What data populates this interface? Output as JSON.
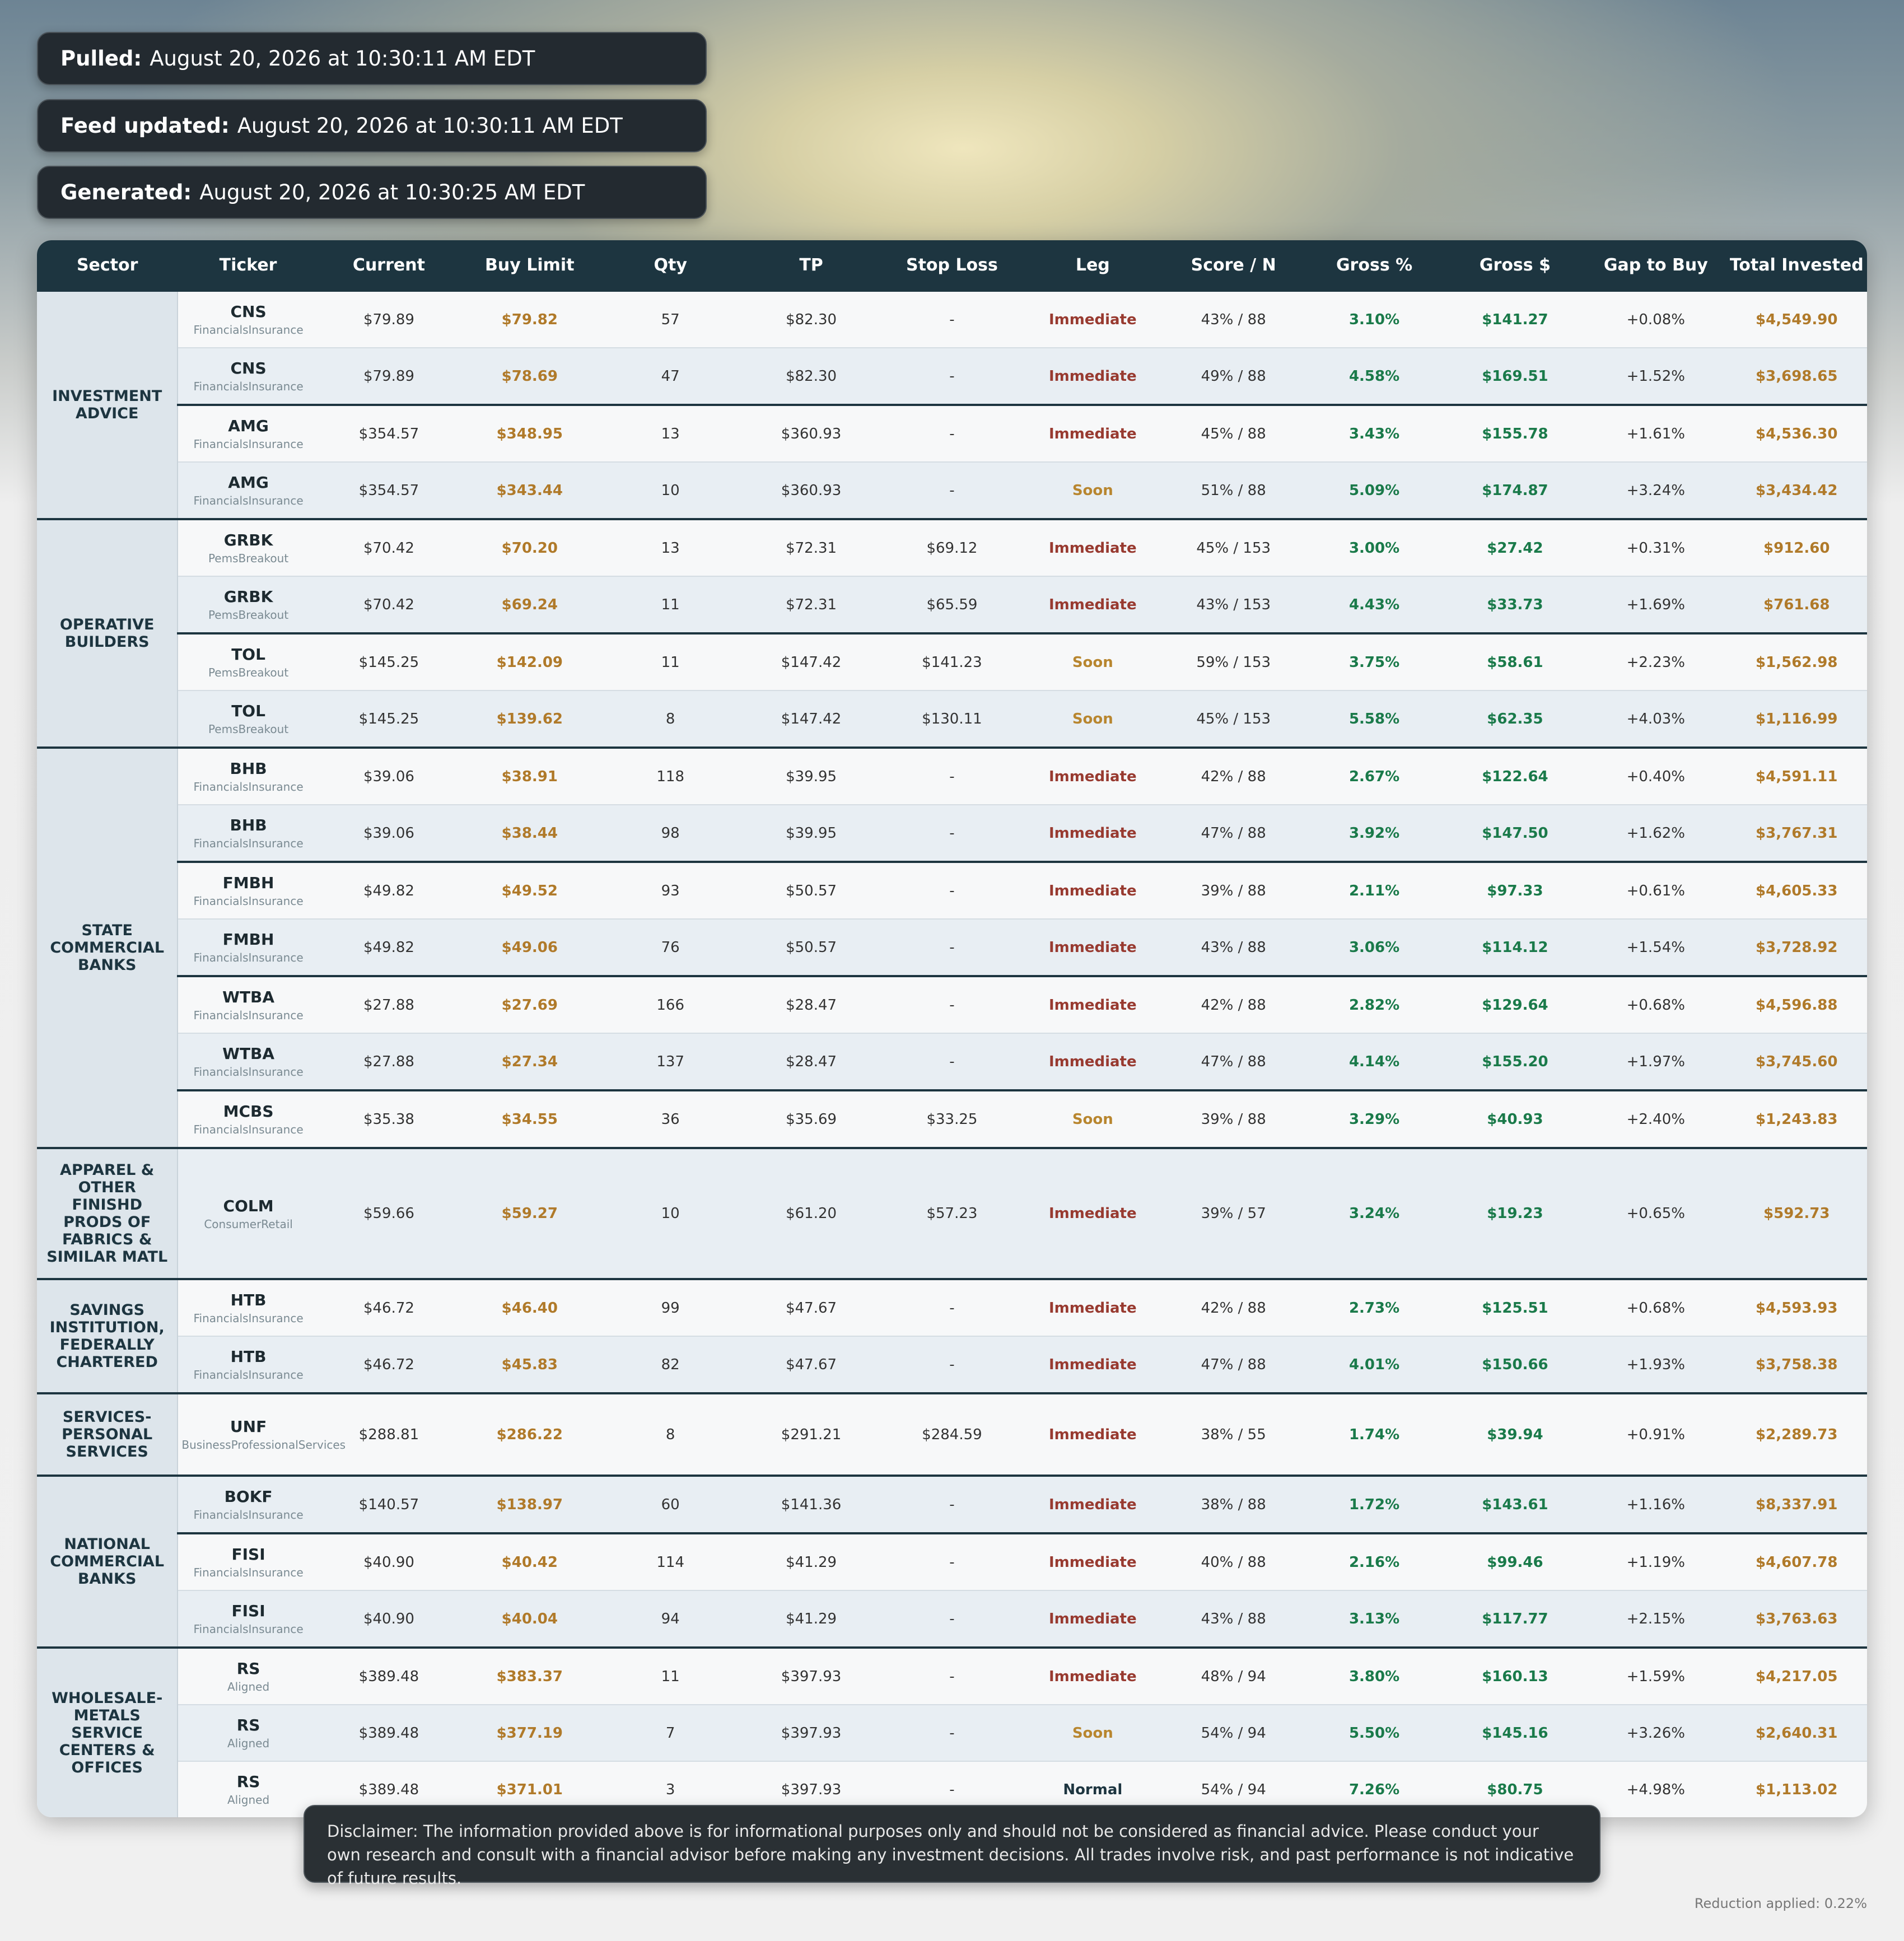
{
  "info": [
    {
      "label": "Pulled:",
      "value": "August 20, 2026 at 10:30:11 AM EDT"
    },
    {
      "label": "Feed updated:",
      "value": "August 20, 2026 at 10:30:11 AM EDT"
    },
    {
      "label": "Generated:",
      "value": "August 20, 2026 at 10:30:25 AM EDT"
    }
  ],
  "table": {
    "columns": [
      "Sector",
      "Ticker",
      "Current",
      "Buy Limit",
      "Qty",
      "TP",
      "Stop Loss",
      "Leg",
      "Score / N",
      "Gross %",
      "Gross $",
      "Gap to Buy",
      "Total Invested"
    ],
    "leg_colors": {
      "Immediate": "#983a30",
      "Soon": "#b8862f",
      "Normal": "#1d3540"
    },
    "groups": [
      {
        "sector": "INVESTMENT ADVICE",
        "rows": [
          [
            "CNS",
            "FinancialsInsurance",
            "$79.89",
            "$79.82",
            "57",
            "$82.30",
            "-",
            "Immediate",
            "43% / 88",
            "3.10%",
            "$141.27",
            "+0.08%",
            "$4,549.90"
          ],
          [
            "CNS",
            "FinancialsInsurance",
            "$79.89",
            "$78.69",
            "47",
            "$82.30",
            "-",
            "Immediate",
            "49% / 88",
            "4.58%",
            "$169.51",
            "+1.52%",
            "$3,698.65"
          ],
          [
            "AMG",
            "FinancialsInsurance",
            "$354.57",
            "$348.95",
            "13",
            "$360.93",
            "-",
            "Immediate",
            "45% / 88",
            "3.43%",
            "$155.78",
            "+1.61%",
            "$4,536.30"
          ],
          [
            "AMG",
            "FinancialsInsurance",
            "$354.57",
            "$343.44",
            "10",
            "$360.93",
            "-",
            "Soon",
            "51% / 88",
            "5.09%",
            "$174.87",
            "+3.24%",
            "$3,434.42"
          ]
        ]
      },
      {
        "sector": "OPERATIVE BUILDERS",
        "rows": [
          [
            "GRBK",
            "PemsBreakout",
            "$70.42",
            "$70.20",
            "13",
            "$72.31",
            "$69.12",
            "Immediate",
            "45% / 153",
            "3.00%",
            "$27.42",
            "+0.31%",
            "$912.60"
          ],
          [
            "GRBK",
            "PemsBreakout",
            "$70.42",
            "$69.24",
            "11",
            "$72.31",
            "$65.59",
            "Immediate",
            "43% / 153",
            "4.43%",
            "$33.73",
            "+1.69%",
            "$761.68"
          ],
          [
            "TOL",
            "PemsBreakout",
            "$145.25",
            "$142.09",
            "11",
            "$147.42",
            "$141.23",
            "Soon",
            "59% / 153",
            "3.75%",
            "$58.61",
            "+2.23%",
            "$1,562.98"
          ],
          [
            "TOL",
            "PemsBreakout",
            "$145.25",
            "$139.62",
            "8",
            "$147.42",
            "$130.11",
            "Soon",
            "45% / 153",
            "5.58%",
            "$62.35",
            "+4.03%",
            "$1,116.99"
          ]
        ]
      },
      {
        "sector": "STATE COMMERCIAL BANKS",
        "rows": [
          [
            "BHB",
            "FinancialsInsurance",
            "$39.06",
            "$38.91",
            "118",
            "$39.95",
            "-",
            "Immediate",
            "42% / 88",
            "2.67%",
            "$122.64",
            "+0.40%",
            "$4,591.11"
          ],
          [
            "BHB",
            "FinancialsInsurance",
            "$39.06",
            "$38.44",
            "98",
            "$39.95",
            "-",
            "Immediate",
            "47% / 88",
            "3.92%",
            "$147.50",
            "+1.62%",
            "$3,767.31"
          ],
          [
            "FMBH",
            "FinancialsInsurance",
            "$49.82",
            "$49.52",
            "93",
            "$50.57",
            "-",
            "Immediate",
            "39% / 88",
            "2.11%",
            "$97.33",
            "+0.61%",
            "$4,605.33"
          ],
          [
            "FMBH",
            "FinancialsInsurance",
            "$49.82",
            "$49.06",
            "76",
            "$50.57",
            "-",
            "Immediate",
            "43% / 88",
            "3.06%",
            "$114.12",
            "+1.54%",
            "$3,728.92"
          ],
          [
            "WTBA",
            "FinancialsInsurance",
            "$27.88",
            "$27.69",
            "166",
            "$28.47",
            "-",
            "Immediate",
            "42% / 88",
            "2.82%",
            "$129.64",
            "+0.68%",
            "$4,596.88"
          ],
          [
            "WTBA",
            "FinancialsInsurance",
            "$27.88",
            "$27.34",
            "137",
            "$28.47",
            "-",
            "Immediate",
            "47% / 88",
            "4.14%",
            "$155.20",
            "+1.97%",
            "$3,745.60"
          ],
          [
            "MCBS",
            "FinancialsInsurance",
            "$35.38",
            "$34.55",
            "36",
            "$35.69",
            "$33.25",
            "Soon",
            "39% / 88",
            "3.29%",
            "$40.93",
            "+2.40%",
            "$1,243.83"
          ]
        ]
      },
      {
        "sector": "APPAREL & OTHER FINISHD PRODS OF FABRICS & SIMILAR MATL",
        "rows": [
          [
            "COLM",
            "ConsumerRetail",
            "$59.66",
            "$59.27",
            "10",
            "$61.20",
            "$57.23",
            "Immediate",
            "39% / 57",
            "3.24%",
            "$19.23",
            "+0.65%",
            "$592.73"
          ]
        ]
      },
      {
        "sector": "SAVINGS INSTITUTION, FEDERALLY CHARTERED",
        "rows": [
          [
            "HTB",
            "FinancialsInsurance",
            "$46.72",
            "$46.40",
            "99",
            "$47.67",
            "-",
            "Immediate",
            "42% / 88",
            "2.73%",
            "$125.51",
            "+0.68%",
            "$4,593.93"
          ],
          [
            "HTB",
            "FinancialsInsurance",
            "$46.72",
            "$45.83",
            "82",
            "$47.67",
            "-",
            "Immediate",
            "47% / 88",
            "4.01%",
            "$150.66",
            "+1.93%",
            "$3,758.38"
          ]
        ]
      },
      {
        "sector": "SERVICES-PERSONAL SERVICES",
        "rows": [
          [
            "UNF",
            "BusinessProfessionalServices",
            "$288.81",
            "$286.22",
            "8",
            "$291.21",
            "$284.59",
            "Immediate",
            "38% / 55",
            "1.74%",
            "$39.94",
            "+0.91%",
            "$2,289.73"
          ]
        ]
      },
      {
        "sector": "NATIONAL COMMERCIAL BANKS",
        "rows": [
          [
            "BOKF",
            "FinancialsInsurance",
            "$140.57",
            "$138.97",
            "60",
            "$141.36",
            "-",
            "Immediate",
            "38% / 88",
            "1.72%",
            "$143.61",
            "+1.16%",
            "$8,337.91"
          ],
          [
            "FISI",
            "FinancialsInsurance",
            "$40.90",
            "$40.42",
            "114",
            "$41.29",
            "-",
            "Immediate",
            "40% / 88",
            "2.16%",
            "$99.46",
            "+1.19%",
            "$4,607.78"
          ],
          [
            "FISI",
            "FinancialsInsurance",
            "$40.90",
            "$40.04",
            "94",
            "$41.29",
            "-",
            "Immediate",
            "43% / 88",
            "3.13%",
            "$117.77",
            "+2.15%",
            "$3,763.63"
          ]
        ]
      },
      {
        "sector": "WHOLESALE-METALS SERVICE CENTERS & OFFICES",
        "rows": [
          [
            "RS",
            "Aligned",
            "$389.48",
            "$383.37",
            "11",
            "$397.93",
            "-",
            "Immediate",
            "48% / 94",
            "3.80%",
            "$160.13",
            "+1.59%",
            "$4,217.05"
          ],
          [
            "RS",
            "Aligned",
            "$389.48",
            "$377.19",
            "7",
            "$397.93",
            "-",
            "Soon",
            "54% / 94",
            "5.50%",
            "$145.16",
            "+3.26%",
            "$2,640.31"
          ],
          [
            "RS",
            "Aligned",
            "$389.48",
            "$371.01",
            "3",
            "$397.93",
            "-",
            "Normal",
            "54% / 94",
            "7.26%",
            "$80.75",
            "+4.98%",
            "$1,113.02"
          ]
        ]
      }
    ]
  },
  "disclaimer": "Disclaimer: The information provided above is for informational purposes only and should not be considered as financial advice. Please conduct your own research and consult with a financial advisor before making any investment decisions. All trades involve risk, and past performance is not indicative of future results.",
  "footer": "Reduction applied: 0.22%"
}
